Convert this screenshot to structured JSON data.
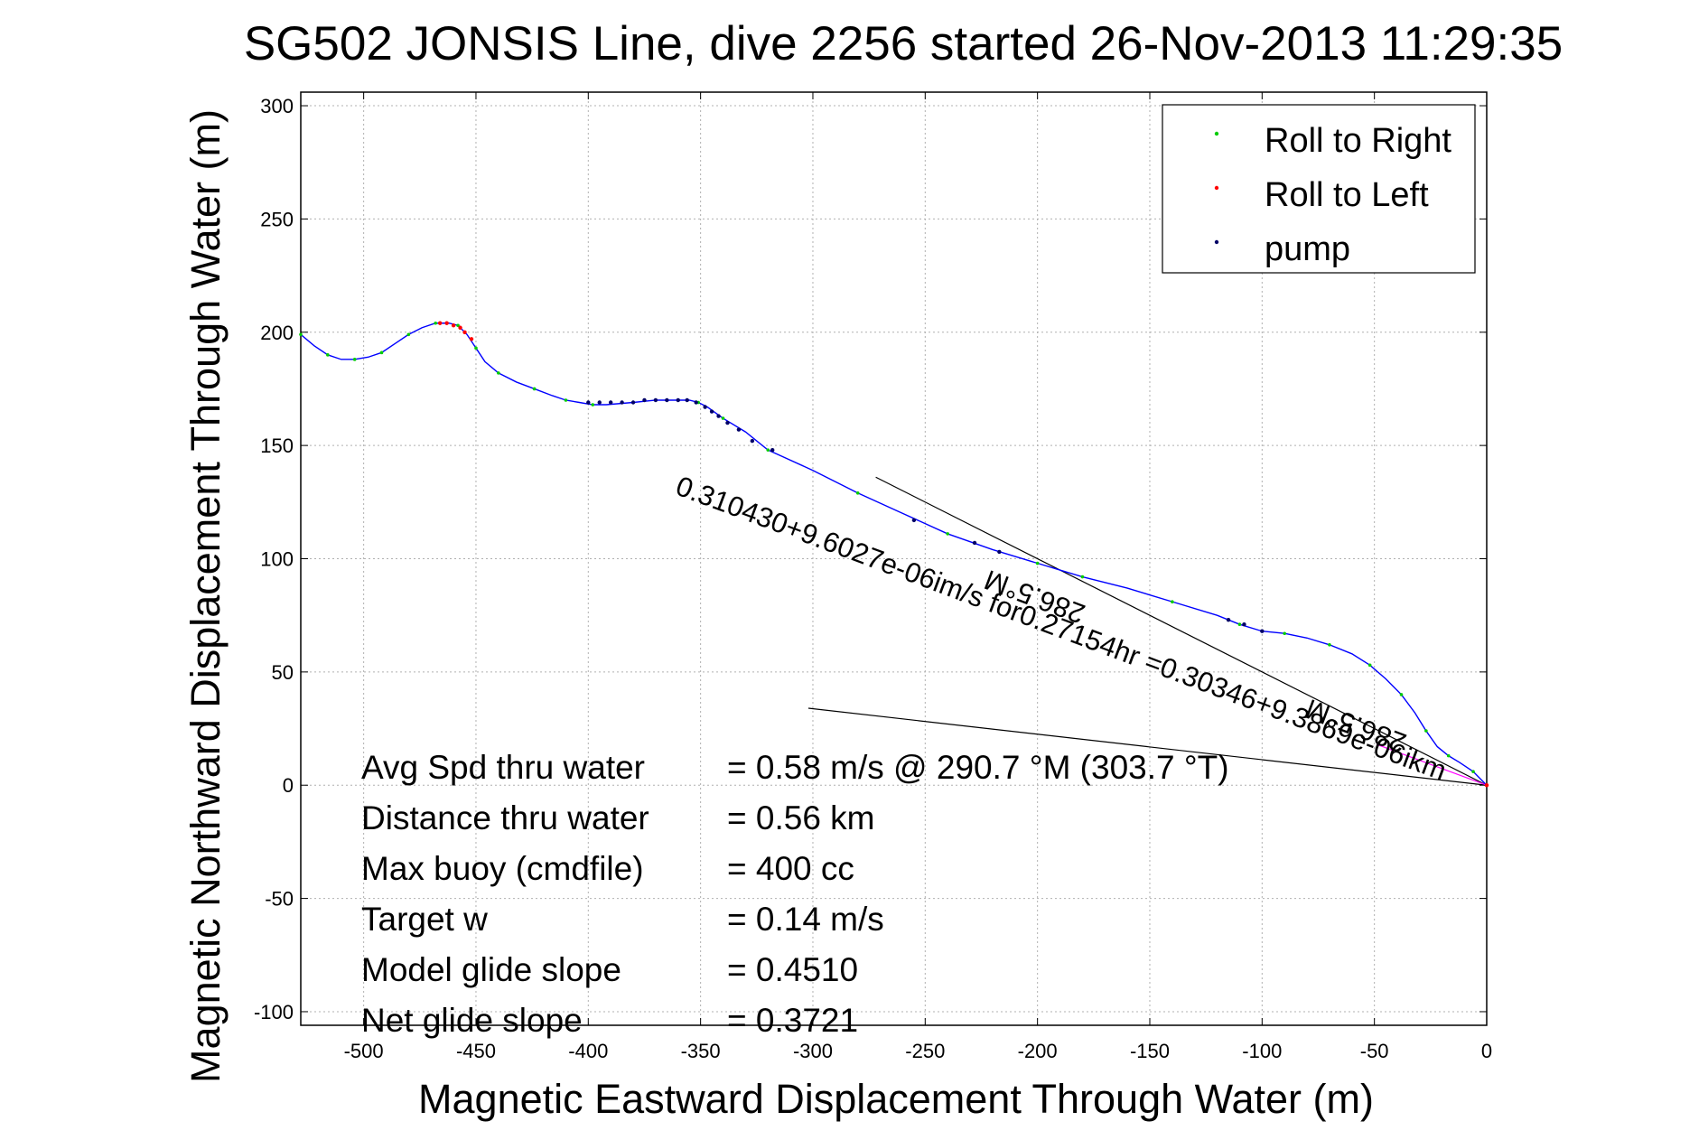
{
  "chart_data": {
    "type": "line",
    "title": "SG502 JONSIS Line, dive 2256 started 26-Nov-2013 11:29:35",
    "xlabel": "Magnetic Eastward Displacement Through Water (m)",
    "ylabel": "Magnetic Northward Displacement Through Water (m)",
    "xlim": [
      -528,
      0
    ],
    "ylim": [
      -106,
      306
    ],
    "x_ticks": [
      -500,
      -450,
      -400,
      -350,
      -300,
      -250,
      -200,
      -150,
      -100,
      -50,
      0
    ],
    "y_ticks": [
      300,
      250,
      200,
      150,
      100,
      50,
      0,
      -50,
      -100
    ],
    "grid": true,
    "legend_position": "top-right",
    "legend": [
      {
        "label": "Roll to Right",
        "color": "#00cc00"
      },
      {
        "label": "Roll to Left",
        "color": "#ff0000"
      },
      {
        "label": "pump",
        "color": "#000066"
      }
    ],
    "series": [
      {
        "name": "track",
        "color": "#0000ff",
        "points": [
          [
            -528,
            199
          ],
          [
            -522,
            194
          ],
          [
            -516,
            190
          ],
          [
            -510,
            188
          ],
          [
            -504,
            188
          ],
          [
            -498,
            189
          ],
          [
            -492,
            191
          ],
          [
            -486,
            195
          ],
          [
            -480,
            199
          ],
          [
            -474,
            202
          ],
          [
            -468,
            204
          ],
          [
            -462,
            204
          ],
          [
            -458,
            203
          ],
          [
            -454,
            199
          ],
          [
            -450,
            193
          ],
          [
            -446,
            187
          ],
          [
            -440,
            182
          ],
          [
            -432,
            178
          ],
          [
            -424,
            175
          ],
          [
            -416,
            172
          ],
          [
            -410,
            170
          ],
          [
            -404,
            169
          ],
          [
            -398,
            168
          ],
          [
            -392,
            168
          ],
          [
            -380,
            169
          ],
          [
            -370,
            170
          ],
          [
            -360,
            170
          ],
          [
            -355,
            170
          ],
          [
            -351,
            169
          ],
          [
            -347,
            167
          ],
          [
            -340,
            162
          ],
          [
            -330,
            156
          ],
          [
            -320,
            148
          ],
          [
            -300,
            139
          ],
          [
            -280,
            129
          ],
          [
            -260,
            120
          ],
          [
            -240,
            111
          ],
          [
            -220,
            104
          ],
          [
            -200,
            98
          ],
          [
            -190,
            95
          ],
          [
            -180,
            92
          ],
          [
            -160,
            87
          ],
          [
            -140,
            81
          ],
          [
            -120,
            75
          ],
          [
            -110,
            71
          ],
          [
            -100,
            68
          ],
          [
            -90,
            67
          ],
          [
            -80,
            65
          ],
          [
            -70,
            62
          ],
          [
            -60,
            58
          ],
          [
            -52,
            53
          ],
          [
            -45,
            47
          ],
          [
            -38,
            40
          ],
          [
            -32,
            32
          ],
          [
            -27,
            24
          ],
          [
            -22,
            17
          ],
          [
            -17,
            13
          ],
          [
            -12,
            10
          ],
          [
            -6,
            6
          ],
          [
            -3,
            3
          ],
          [
            0,
            0
          ]
        ]
      },
      {
        "name": "pump",
        "color": "#000066",
        "points": [
          [
            -400,
            169
          ],
          [
            -395,
            169
          ],
          [
            -390,
            169
          ],
          [
            -385,
            169
          ],
          [
            -380,
            169
          ],
          [
            -375,
            170
          ],
          [
            -370,
            170
          ],
          [
            -365,
            170
          ],
          [
            -360,
            170
          ],
          [
            -356,
            170
          ],
          [
            -352,
            169
          ],
          [
            -348,
            167
          ],
          [
            -345,
            165
          ],
          [
            -342,
            163
          ],
          [
            -338,
            160
          ],
          [
            -333,
            157
          ],
          [
            -327,
            152
          ],
          [
            -318,
            148
          ],
          [
            -255,
            117
          ],
          [
            -228,
            107
          ],
          [
            -217,
            103
          ],
          [
            -115,
            73
          ],
          [
            -108,
            71
          ],
          [
            -100,
            68
          ]
        ]
      },
      {
        "name": "Roll to Left",
        "color": "#ff0000",
        "points": [
          [
            -466,
            204
          ],
          [
            -463,
            204
          ],
          [
            -460,
            203
          ],
          [
            -457,
            202
          ],
          [
            -455,
            200
          ],
          [
            -452,
            197
          ],
          [
            0,
            0
          ]
        ]
      }
    ],
    "reference_lines": [
      {
        "color": "#000000",
        "points": [
          [
            -272,
            136
          ],
          [
            0,
            0
          ]
        ]
      },
      {
        "color": "#000000",
        "points": [
          [
            -302,
            34
          ],
          [
            0,
            0
          ]
        ]
      },
      {
        "color": "#ff00ff",
        "points": [
          [
            -49,
            18
          ],
          [
            0,
            0
          ]
        ]
      }
    ],
    "annotations": [
      {
        "text": "0.310430+9.6027e-06im/s for0.27154hr =0.30346+9.3869e-06ikm",
        "x": -20,
        "y": 2,
        "angle": 20.5
      },
      {
        "text": "286.5°M",
        "x": -178,
        "y": 79,
        "angle": 200.5
      },
      {
        "text": "286.5°M",
        "x": -35,
        "y": 22,
        "angle": 200.5
      }
    ],
    "stats": [
      {
        "label": "Avg Spd thru water",
        "value": "=  0.58 m/s @ 290.7 °M (303.7 °T)"
      },
      {
        "label": "Distance thru water",
        "value": "=  0.56 km"
      },
      {
        "label": "Max buoy (cmdfile)",
        "value": "= 400 cc"
      },
      {
        "label": "Target w",
        "value": "= 0.14 m/s"
      },
      {
        "label": "Model glide slope",
        "value": "= 0.4510"
      },
      {
        "label": "Net glide slope",
        "value": "= 0.3721"
      }
    ]
  }
}
